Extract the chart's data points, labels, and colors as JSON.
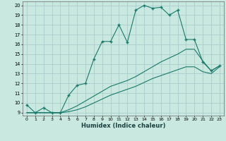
{
  "xlabel": "Humidex (Indice chaleur)",
  "bg_color": "#c8e8e0",
  "grid_color": "#aacccc",
  "line_color": "#1a7a6a",
  "xlim": [
    -0.5,
    23.5
  ],
  "ylim": [
    8.7,
    20.4
  ],
  "yticks": [
    9,
    10,
    11,
    12,
    13,
    14,
    15,
    16,
    17,
    18,
    19,
    20
  ],
  "xticks": [
    0,
    1,
    2,
    3,
    4,
    5,
    6,
    7,
    8,
    9,
    10,
    11,
    12,
    13,
    14,
    15,
    16,
    17,
    18,
    19,
    20,
    21,
    22,
    23
  ],
  "series": [
    {
      "x": [
        0,
        1,
        2,
        3,
        4,
        5,
        6,
        7,
        8,
        9,
        10,
        11,
        12,
        13,
        14,
        15,
        16,
        17,
        18,
        19,
        20,
        21,
        22,
        23
      ],
      "y": [
        9.8,
        9.0,
        9.5,
        9.0,
        9.0,
        10.8,
        11.8,
        12.0,
        14.5,
        16.3,
        16.3,
        18.0,
        16.2,
        19.5,
        20.0,
        19.7,
        19.8,
        19.0,
        19.5,
        16.5,
        16.5,
        14.2,
        13.3,
        13.8
      ],
      "marker": "+"
    },
    {
      "x": [
        0,
        1,
        2,
        3,
        4,
        5,
        6,
        7,
        8,
        9,
        10,
        11,
        12,
        13,
        14,
        15,
        16,
        17,
        18,
        19,
        20,
        21,
        22,
        23
      ],
      "y": [
        9.0,
        9.0,
        9.0,
        9.0,
        9.0,
        9.3,
        9.7,
        10.2,
        10.7,
        11.2,
        11.7,
        12.0,
        12.3,
        12.7,
        13.2,
        13.7,
        14.2,
        14.6,
        15.0,
        15.5,
        15.5,
        14.3,
        13.3,
        13.8
      ],
      "marker": null
    },
    {
      "x": [
        0,
        1,
        2,
        3,
        4,
        5,
        6,
        7,
        8,
        9,
        10,
        11,
        12,
        13,
        14,
        15,
        16,
        17,
        18,
        19,
        20,
        21,
        22,
        23
      ],
      "y": [
        9.0,
        9.0,
        9.0,
        9.0,
        9.0,
        9.1,
        9.3,
        9.6,
        10.0,
        10.4,
        10.8,
        11.1,
        11.4,
        11.7,
        12.1,
        12.5,
        12.8,
        13.1,
        13.4,
        13.7,
        13.7,
        13.2,
        13.0,
        13.7
      ],
      "marker": null
    }
  ]
}
